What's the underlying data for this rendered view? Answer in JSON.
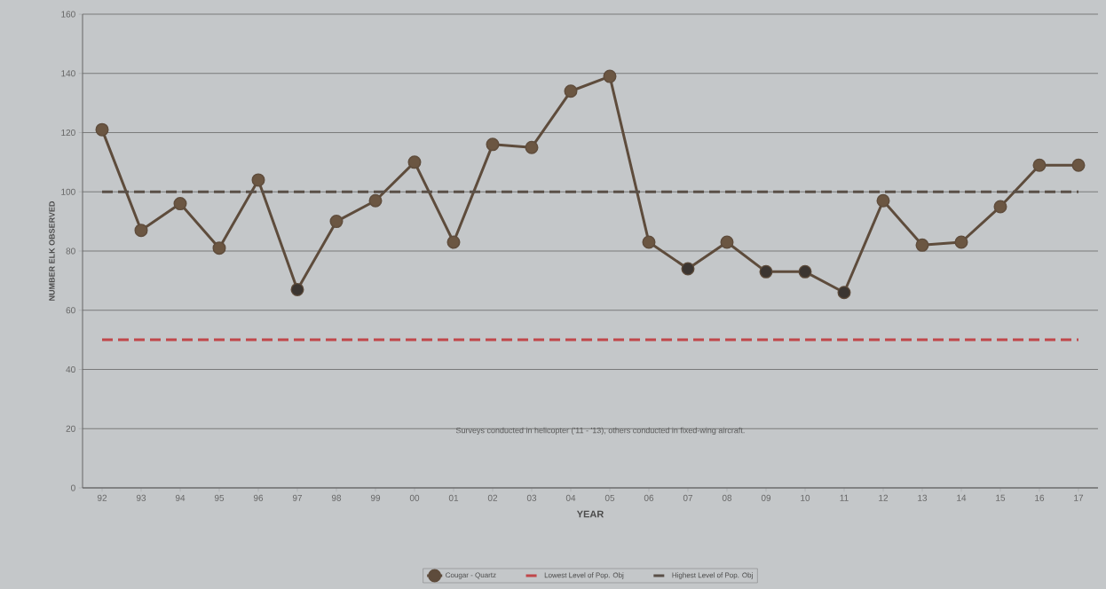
{
  "chart_data": {
    "type": "line",
    "xlabel": "YEAR",
    "ylabel": "NUMBER ELK OBSERVED",
    "categories": [
      "92",
      "93",
      "94",
      "95",
      "96",
      "97",
      "98",
      "99",
      "00",
      "01",
      "02",
      "03",
      "04",
      "05",
      "06",
      "07",
      "08",
      "09",
      "10",
      "11",
      "12",
      "13",
      "14",
      "15",
      "16",
      "17"
    ],
    "series": [
      {
        "name": "Cougar - Quartz",
        "color": "#5e4c3c",
        "colors": [
          "#6b5642",
          "#6b5642",
          "#6b5642",
          "#6b5642",
          "#6b5642",
          "#3b3531",
          "#6b5642",
          "#6b5642",
          "#6b5642",
          "#6b5642",
          "#6b5642",
          "#6b5642",
          "#6b5642",
          "#6b5642",
          "#6b5642",
          "#3b3531",
          "#6b5642",
          "#3b3531",
          "#3b3531",
          "#3b3531",
          "#6b5642",
          "#6b5642",
          "#6b5642",
          "#6b5642",
          "#6b5642",
          "#6b5642"
        ],
        "values": [
          121,
          87,
          96,
          81,
          104,
          67,
          90,
          97,
          110,
          83,
          116,
          115,
          134,
          139,
          83,
          74,
          83,
          73,
          73,
          66,
          97,
          82,
          83,
          95,
          109,
          109
        ]
      }
    ],
    "ylim": [
      0,
      160
    ],
    "yticks": [
      0,
      20,
      40,
      60,
      80,
      100,
      120,
      140,
      160
    ],
    "ref_lines": [
      {
        "axis": "y",
        "value": 50,
        "label": "Lowest Level of Pop. Obj",
        "color": "#c0474a",
        "line_style": "dashed"
      },
      {
        "axis": "y",
        "value": 100,
        "label": "Highest Level of Pop. Obj",
        "color": "#5a5048",
        "line_style": "dashed"
      }
    ],
    "annotations": [
      "Surveys conducted in helicopter ('11 - '13), others conducted in fixed-wing aircraft."
    ],
    "grid": "y",
    "legend": "bottom",
    "marker": "circle",
    "line_style": "solid"
  }
}
